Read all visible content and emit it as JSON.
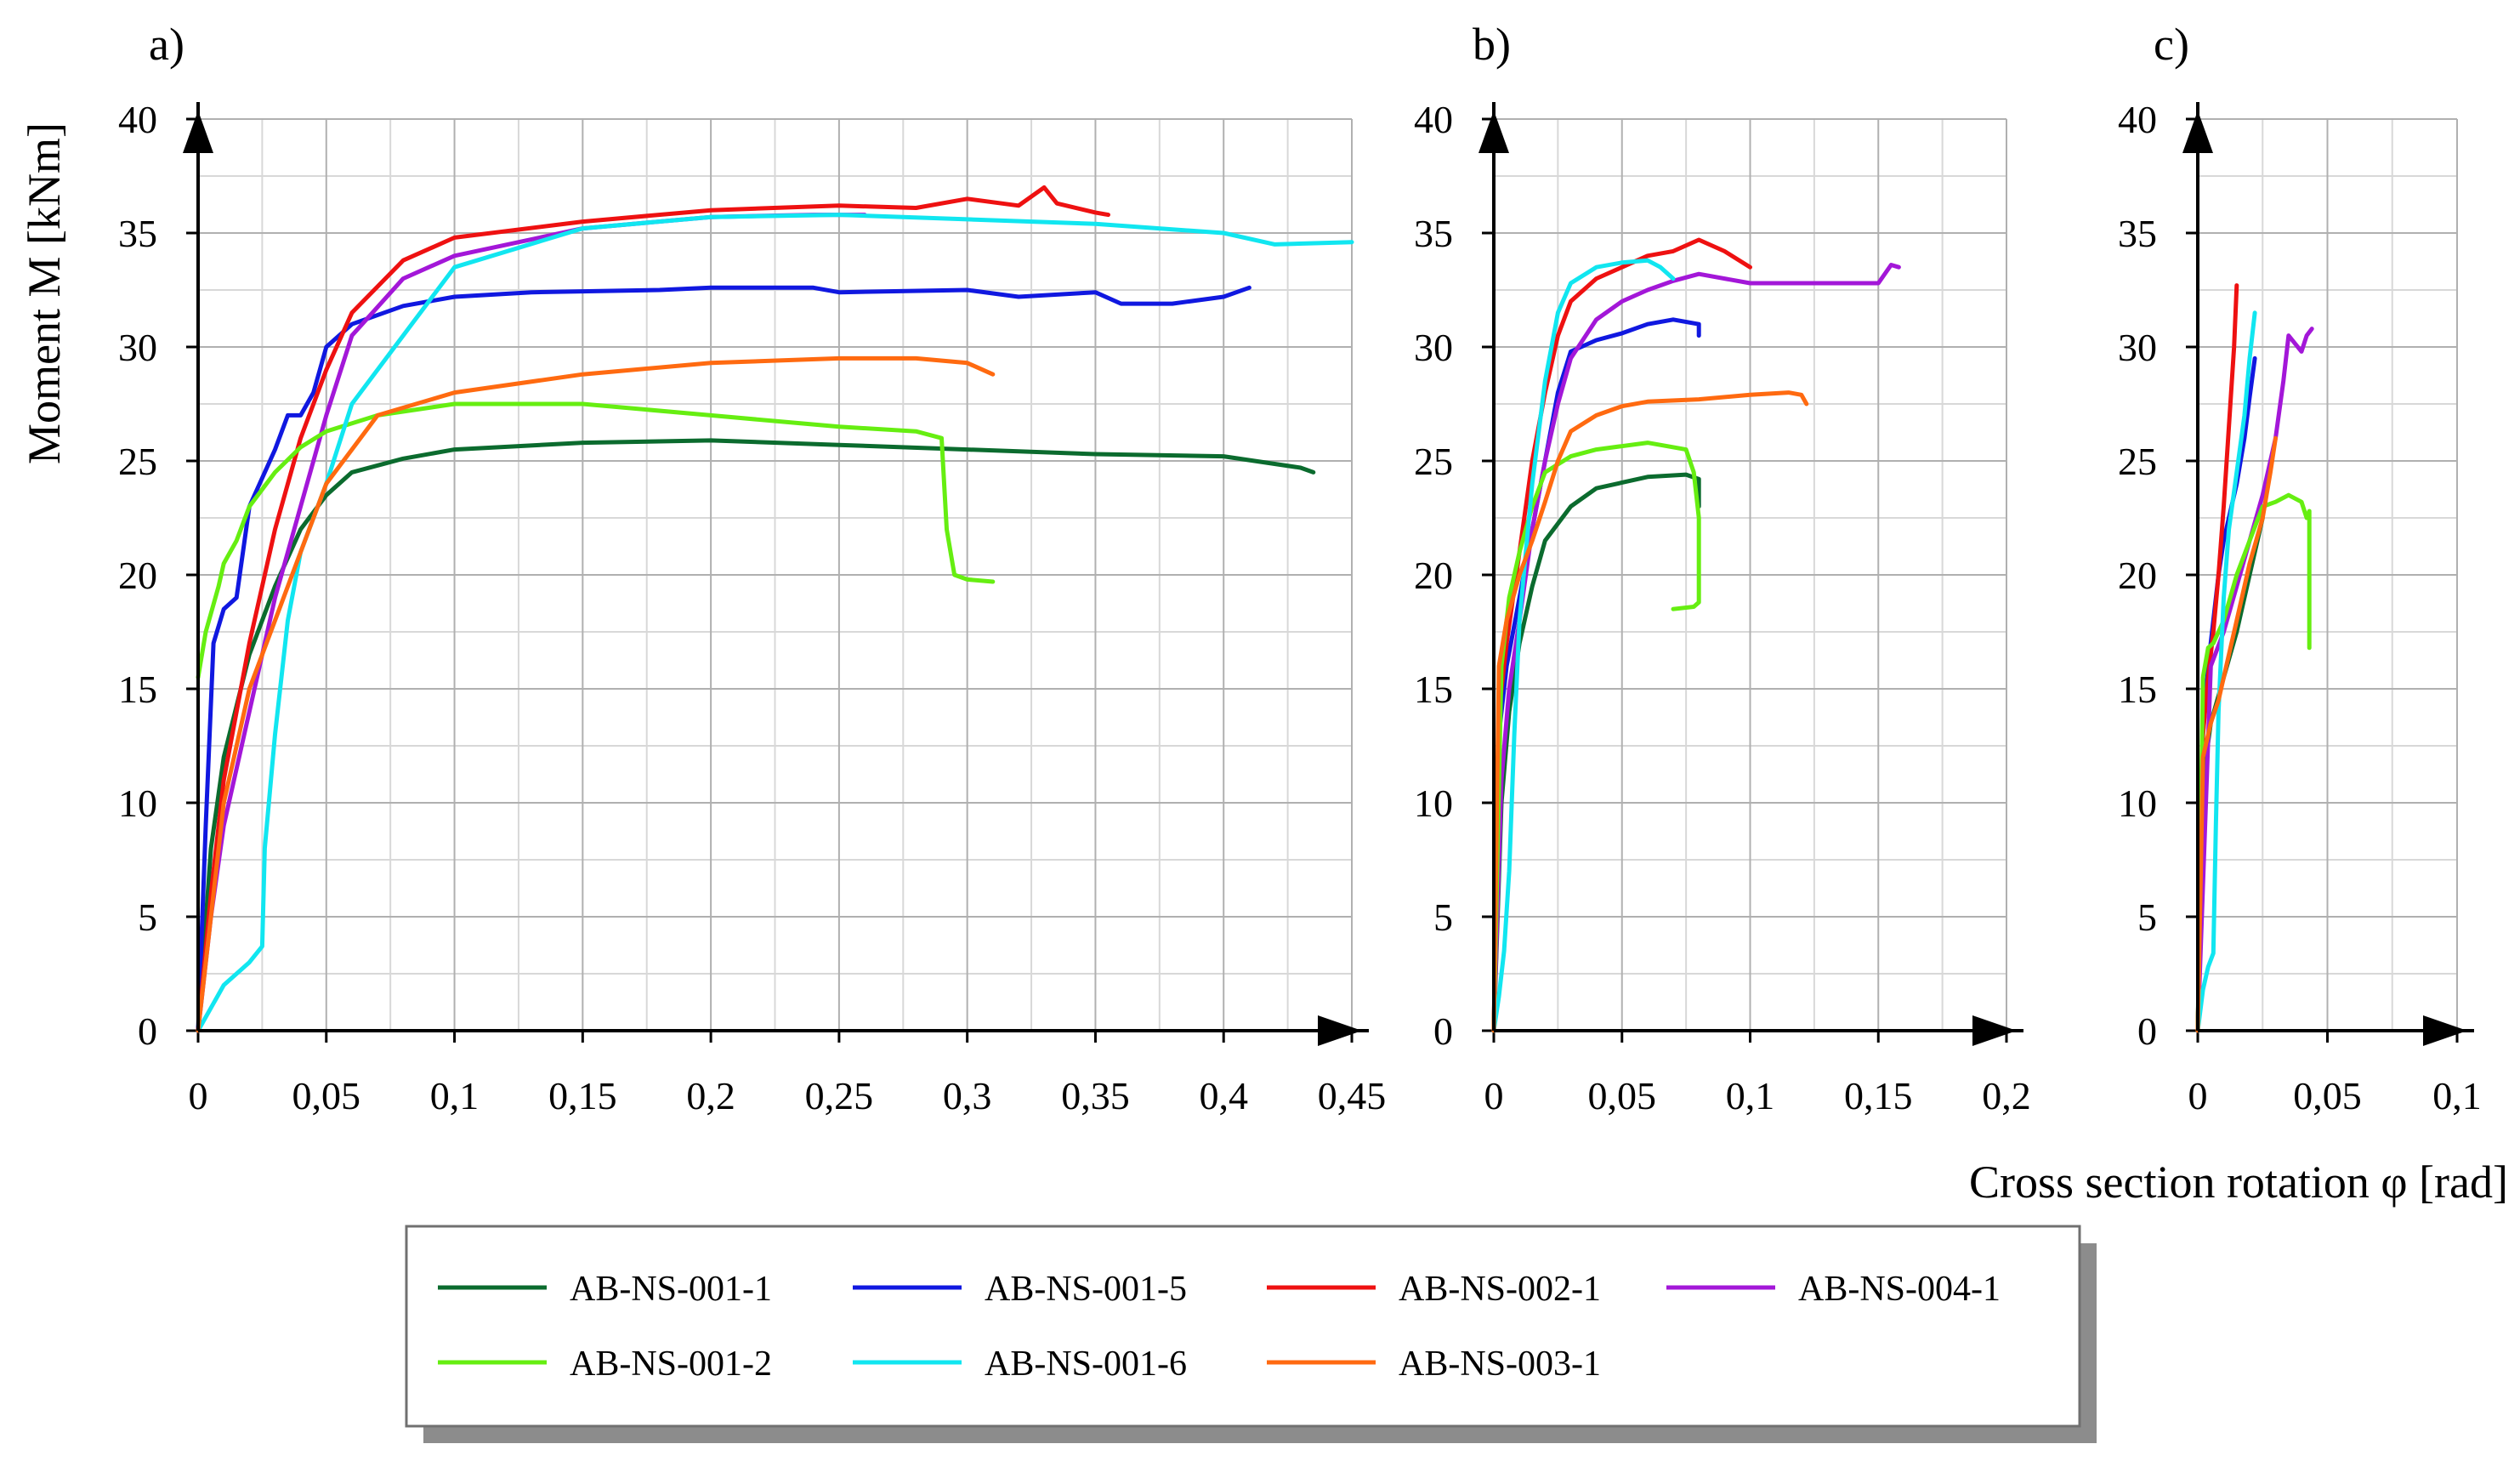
{
  "figure": {
    "x_label": "Cross section rotation φ [rad]",
    "y_label": "Moment M [kNm]"
  },
  "legend": [
    {
      "name": "AB-NS-001-1",
      "color": "#0b6b2e"
    },
    {
      "name": "AB-NS-001-5",
      "color": "#1018e0"
    },
    {
      "name": "AB-NS-002-1",
      "color": "#ee1111"
    },
    {
      "name": "AB-NS-004-1",
      "color": "#a317d8"
    },
    {
      "name": "AB-NS-001-2",
      "color": "#66ee11"
    },
    {
      "name": "AB-NS-001-6",
      "color": "#11e6f0"
    },
    {
      "name": "AB-NS-003-1",
      "color": "#ff6a10"
    }
  ],
  "chart_data": [
    {
      "type": "line",
      "panel_label": "a)",
      "xlim": [
        0,
        0.45
      ],
      "ylim": [
        0,
        40
      ],
      "x_ticks": [
        0,
        0.05,
        0.1,
        0.15,
        0.2,
        0.25,
        0.3,
        0.35,
        0.4,
        0.45
      ],
      "x_tick_labels": [
        "0",
        "0,05",
        "0,1",
        "0,15",
        "0,2",
        "0,25",
        "0,3",
        "0,35",
        "0,4",
        "0,45"
      ],
      "y_ticks": [
        0,
        5,
        10,
        15,
        20,
        25,
        30,
        35,
        40
      ],
      "y_tick_labels": [
        "0",
        "5",
        "10",
        "15",
        "20",
        "25",
        "30",
        "35",
        "40"
      ],
      "grid": true,
      "series": [
        {
          "name": "AB-NS-001-1",
          "x": [
            0,
            0.005,
            0.01,
            0.02,
            0.03,
            0.04,
            0.05,
            0.06,
            0.08,
            0.1,
            0.15,
            0.2,
            0.25,
            0.3,
            0.35,
            0.4,
            0.43,
            0.435
          ],
          "y": [
            0,
            8,
            12,
            16.5,
            19.5,
            22,
            23.5,
            24.5,
            25.1,
            25.5,
            25.8,
            25.9,
            25.7,
            25.5,
            25.3,
            25.2,
            24.7,
            24.5
          ]
        },
        {
          "name": "AB-NS-001-5",
          "x": [
            0,
            0.003,
            0.006,
            0.01,
            0.015,
            0.02,
            0.03,
            0.035,
            0.04,
            0.045,
            0.05,
            0.06,
            0.08,
            0.1,
            0.13,
            0.18,
            0.2,
            0.24,
            0.25,
            0.3,
            0.32,
            0.35,
            0.36,
            0.38,
            0.4,
            0.41
          ],
          "y": [
            0,
            9,
            17,
            18.5,
            19,
            23,
            25.5,
            27,
            27,
            28,
            30,
            31,
            31.8,
            32.2,
            32.4,
            32.5,
            32.6,
            32.6,
            32.4,
            32.5,
            32.2,
            32.4,
            31.9,
            31.9,
            32.2,
            32.6
          ]
        },
        {
          "name": "AB-NS-002-1",
          "x": [
            0,
            0.005,
            0.01,
            0.02,
            0.03,
            0.04,
            0.05,
            0.06,
            0.08,
            0.1,
            0.15,
            0.2,
            0.25,
            0.28,
            0.3,
            0.32,
            0.33,
            0.335,
            0.35,
            0.355
          ],
          "y": [
            0,
            6,
            11,
            17,
            22,
            26,
            29,
            31.5,
            33.8,
            34.8,
            35.5,
            36,
            36.2,
            36.1,
            36.5,
            36.2,
            37,
            36.3,
            35.9,
            35.8
          ]
        },
        {
          "name": "AB-NS-004-1",
          "x": [
            0,
            0.005,
            0.01,
            0.02,
            0.03,
            0.04,
            0.05,
            0.06,
            0.08,
            0.1,
            0.15,
            0.2,
            0.24,
            0.26
          ],
          "y": [
            0,
            5,
            9,
            14,
            19,
            23,
            27,
            30.5,
            33,
            34,
            35.2,
            35.7,
            35.8,
            35.8
          ]
        },
        {
          "name": "AB-NS-001-2",
          "x": [
            0,
            0.003,
            0.008,
            0.01,
            0.015,
            0.02,
            0.03,
            0.04,
            0.05,
            0.07,
            0.1,
            0.15,
            0.2,
            0.25,
            0.28,
            0.29,
            0.292,
            0.295,
            0.3,
            0.31
          ],
          "y": [
            15.5,
            17.5,
            19.5,
            20.5,
            21.5,
            23,
            24.5,
            25.6,
            26.3,
            27,
            27.5,
            27.5,
            27,
            26.5,
            26.3,
            26,
            22,
            20,
            19.8,
            19.7
          ]
        },
        {
          "name": "AB-NS-001-6",
          "x": [
            0,
            0.005,
            0.01,
            0.02,
            0.025,
            0.026,
            0.03,
            0.035,
            0.04,
            0.05,
            0.06,
            0.08,
            0.1,
            0.15,
            0.2,
            0.25,
            0.3,
            0.35,
            0.4,
            0.42,
            0.45
          ],
          "y": [
            0,
            1,
            2,
            3,
            3.7,
            8,
            13,
            18,
            21,
            24,
            27.5,
            30.5,
            33.5,
            35.2,
            35.7,
            35.8,
            35.6,
            35.4,
            35,
            34.5,
            34.6
          ]
        },
        {
          "name": "AB-NS-003-1",
          "x": [
            0,
            0.005,
            0.01,
            0.02,
            0.03,
            0.04,
            0.05,
            0.07,
            0.1,
            0.15,
            0.2,
            0.25,
            0.28,
            0.3,
            0.31
          ],
          "y": [
            0,
            5,
            10,
            15,
            18,
            21,
            24,
            27,
            28,
            28.8,
            29.3,
            29.5,
            29.5,
            29.3,
            28.8
          ]
        }
      ]
    },
    {
      "type": "line",
      "panel_label": "b)",
      "xlim": [
        0,
        0.2
      ],
      "ylim": [
        0,
        40
      ],
      "x_ticks": [
        0,
        0.05,
        0.1,
        0.15,
        0.2
      ],
      "x_tick_labels": [
        "0",
        "0,05",
        "0,1",
        "0,15",
        "0,2"
      ],
      "y_ticks": [
        0,
        5,
        10,
        15,
        20,
        25,
        30,
        35,
        40
      ],
      "y_tick_labels": [
        "0",
        "5",
        "10",
        "15",
        "20",
        "25",
        "30",
        "35",
        "40"
      ],
      "grid": true,
      "series": [
        {
          "name": "AB-NS-001-1",
          "x": [
            0,
            0.003,
            0.006,
            0.01,
            0.015,
            0.02,
            0.03,
            0.04,
            0.06,
            0.075,
            0.08,
            0.08
          ],
          "y": [
            0,
            10,
            14,
            17,
            19.5,
            21.5,
            23,
            23.8,
            24.3,
            24.4,
            24.2,
            23
          ]
        },
        {
          "name": "AB-NS-001-5",
          "x": [
            0,
            0.002,
            0.005,
            0.01,
            0.015,
            0.02,
            0.025,
            0.03,
            0.04,
            0.05,
            0.06,
            0.07,
            0.08,
            0.08
          ],
          "y": [
            0,
            13,
            16,
            19,
            22,
            25,
            28,
            29.8,
            30.3,
            30.6,
            31,
            31.2,
            31,
            30.5
          ]
        },
        {
          "name": "AB-NS-002-1",
          "x": [
            0,
            0.002,
            0.005,
            0.01,
            0.015,
            0.02,
            0.025,
            0.03,
            0.04,
            0.05,
            0.06,
            0.07,
            0.08,
            0.09,
            0.1
          ],
          "y": [
            0,
            14,
            17,
            21,
            25,
            28,
            30.5,
            32,
            33,
            33.5,
            34,
            34.2,
            34.7,
            34.2,
            33.5
          ]
        },
        {
          "name": "AB-NS-004-1",
          "x": [
            0,
            0.003,
            0.006,
            0.01,
            0.015,
            0.02,
            0.025,
            0.03,
            0.04,
            0.05,
            0.06,
            0.07,
            0.08,
            0.1,
            0.12,
            0.15,
            0.155,
            0.158
          ],
          "y": [
            0,
            11,
            15,
            18,
            22,
            25,
            27.5,
            29.5,
            31.2,
            32,
            32.5,
            32.9,
            33.2,
            32.8,
            32.8,
            32.8,
            33.6,
            33.5
          ]
        },
        {
          "name": "AB-NS-001-2",
          "x": [
            0,
            0.003,
            0.006,
            0.01,
            0.015,
            0.02,
            0.03,
            0.04,
            0.06,
            0.075,
            0.078,
            0.08,
            0.08,
            0.078,
            0.07
          ],
          "y": [
            0,
            16,
            19,
            21,
            23,
            24.5,
            25.2,
            25.5,
            25.8,
            25.5,
            24.5,
            22.5,
            18.8,
            18.6,
            18.5
          ]
        },
        {
          "name": "AB-NS-001-6",
          "x": [
            0,
            0.002,
            0.004,
            0.006,
            0.008,
            0.01,
            0.015,
            0.02,
            0.025,
            0.03,
            0.04,
            0.05,
            0.06,
            0.065,
            0.07
          ],
          "y": [
            0,
            1.5,
            3.5,
            7,
            13,
            18,
            24,
            28.5,
            31.5,
            32.8,
            33.5,
            33.7,
            33.8,
            33.5,
            33
          ]
        },
        {
          "name": "AB-NS-003-1",
          "x": [
            0,
            0.002,
            0.005,
            0.01,
            0.015,
            0.02,
            0.025,
            0.03,
            0.04,
            0.05,
            0.06,
            0.08,
            0.1,
            0.115,
            0.12,
            0.122
          ],
          "y": [
            0,
            16,
            18,
            20,
            21.5,
            23.2,
            25,
            26.3,
            27,
            27.4,
            27.6,
            27.7,
            27.9,
            28,
            27.9,
            27.5
          ]
        }
      ]
    },
    {
      "type": "line",
      "panel_label": "c)",
      "xlim": [
        0,
        0.1
      ],
      "ylim": [
        0,
        40
      ],
      "x_ticks": [
        0,
        0.05,
        0.1
      ],
      "x_tick_labels": [
        "0",
        "0,05",
        "0,1"
      ],
      "y_ticks": [
        0,
        5,
        10,
        15,
        20,
        25,
        30,
        35,
        40
      ],
      "y_tick_labels": [
        "0",
        "5",
        "10",
        "15",
        "20",
        "25",
        "30",
        "35",
        "40"
      ],
      "grid": true,
      "series": [
        {
          "name": "AB-NS-001-1",
          "x": [
            0,
            0.002,
            0.005,
            0.01,
            0.015,
            0.02,
            0.025
          ],
          "y": [
            0,
            11,
            13.5,
            15.5,
            17.5,
            20,
            22.5
          ]
        },
        {
          "name": "AB-NS-001-5",
          "x": [
            0,
            0.002,
            0.004,
            0.006,
            0.008,
            0.01,
            0.012,
            0.015,
            0.018,
            0.02,
            0.022
          ],
          "y": [
            0,
            13,
            16,
            18,
            20,
            21.5,
            22.5,
            24,
            26,
            27.8,
            29.5
          ]
        },
        {
          "name": "AB-NS-002-1",
          "x": [
            0,
            0.002,
            0.004,
            0.006,
            0.008,
            0.01,
            0.012,
            0.014,
            0.015
          ],
          "y": [
            0,
            13,
            15.5,
            17.5,
            20,
            23,
            26.5,
            30,
            32.7
          ]
        },
        {
          "name": "AB-NS-004-1",
          "x": [
            0,
            0.005,
            0.01,
            0.015,
            0.02,
            0.025,
            0.03,
            0.033,
            0.035,
            0.04,
            0.042,
            0.044
          ],
          "y": [
            0,
            16,
            17.5,
            19.5,
            21.5,
            23.5,
            26,
            28.5,
            30.5,
            29.8,
            30.5,
            30.8
          ]
        },
        {
          "name": "AB-NS-001-2",
          "x": [
            0,
            0.002,
            0.004,
            0.006,
            0.01,
            0.015,
            0.02,
            0.025,
            0.03,
            0.035,
            0.04,
            0.042,
            0.043,
            0.043
          ],
          "y": [
            0,
            15.5,
            16.8,
            17,
            18,
            20,
            21.5,
            23,
            23.2,
            23.5,
            23.2,
            22.5,
            22.8,
            16.8
          ]
        },
        {
          "name": "AB-NS-001-6",
          "x": [
            0,
            0.002,
            0.004,
            0.006,
            0.007,
            0.008,
            0.01,
            0.012,
            0.015,
            0.018,
            0.02,
            0.022
          ],
          "y": [
            0,
            1.8,
            2.8,
            3.4,
            9,
            14,
            19,
            22,
            24.5,
            27,
            29.5,
            31.5
          ]
        },
        {
          "name": "AB-NS-003-1",
          "x": [
            0,
            0.002,
            0.005,
            0.008,
            0.01,
            0.015,
            0.02,
            0.025,
            0.028,
            0.03
          ],
          "y": [
            0,
            12,
            13.5,
            14.5,
            15.5,
            18,
            20.5,
            22.5,
            24.5,
            26
          ]
        }
      ]
    }
  ]
}
